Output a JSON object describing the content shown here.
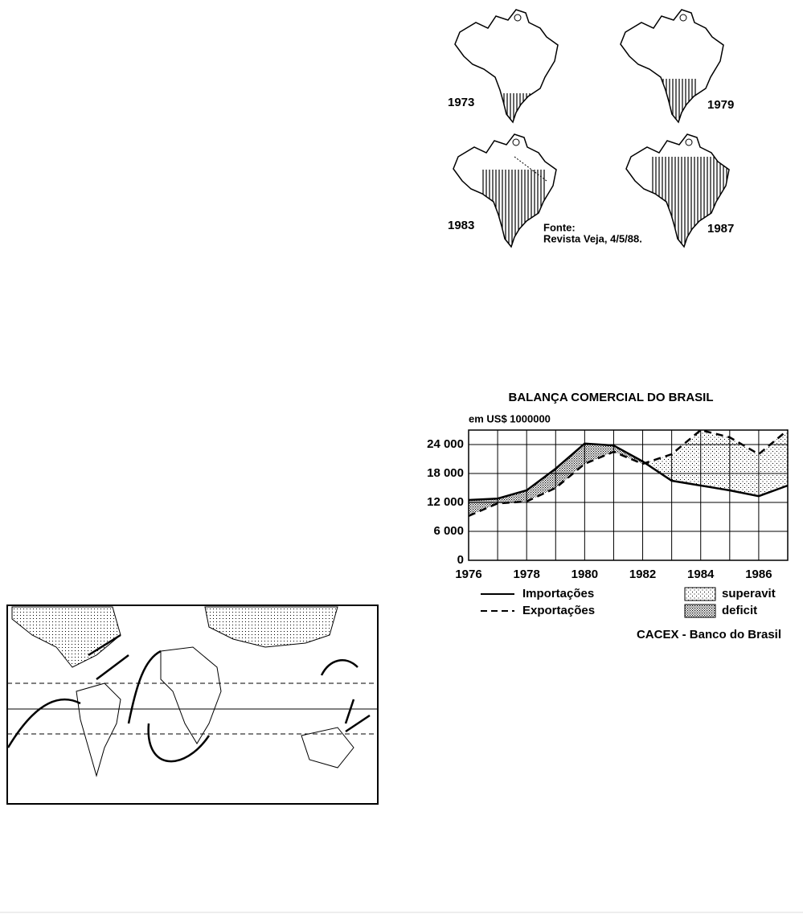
{
  "maps": {
    "years": [
      "1973",
      "1979",
      "1983",
      "1987"
    ],
    "source_label": "Fonte:",
    "source": "Revista Veja, 4/5/88."
  },
  "chart_data": {
    "type": "line",
    "title": "BALANÇA COMERCIAL DO BRASIL",
    "y_label": "em US$ 1000000",
    "x": [
      1976,
      1977,
      1978,
      1979,
      1980,
      1981,
      1982,
      1983,
      1984,
      1985,
      1986,
      1987
    ],
    "xlim": [
      1976,
      1987
    ],
    "xticks": [
      1976,
      1978,
      1980,
      1982,
      1984,
      1986
    ],
    "ylim": [
      0,
      27000
    ],
    "yticks": [
      0,
      {
        "value": 6000,
        "label": "6 000"
      },
      {
        "value": 12000,
        "label": "12 000"
      },
      {
        "value": 18000,
        "label": "18 000"
      },
      {
        "value": 24000,
        "label": "24 000"
      }
    ],
    "grid": true,
    "series": [
      {
        "name": "Importações",
        "color": "#000000",
        "dash": "solid",
        "values": [
          12500,
          12800,
          14500,
          19000,
          24200,
          23800,
          20500,
          16500,
          15500,
          14500,
          13300,
          15500
        ]
      },
      {
        "name": "Exportações",
        "color": "#000000",
        "dash": "dashed",
        "values": [
          9200,
          11800,
          12200,
          15000,
          20000,
          22500,
          20000,
          22000,
          27000,
          25500,
          22000,
          27000
        ]
      }
    ],
    "areas": [
      {
        "name": "superavit"
      },
      {
        "name": "deficit"
      }
    ],
    "source": "CACEX - Banco do Brasil"
  }
}
